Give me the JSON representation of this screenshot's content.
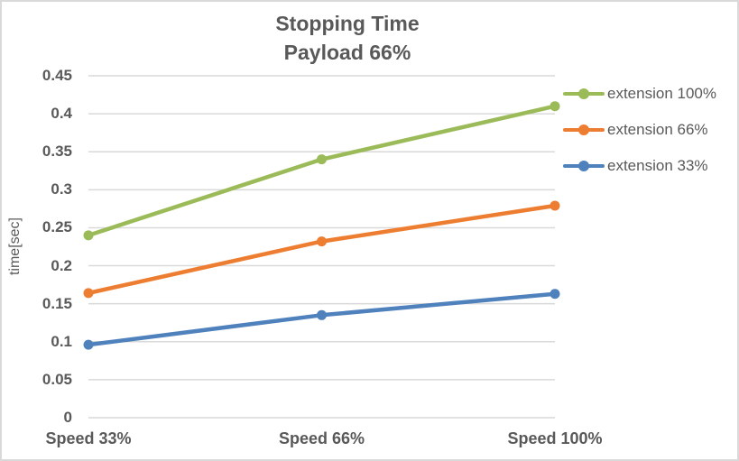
{
  "chart_data": {
    "type": "line",
    "title": "Stopping Time",
    "subtitle": "Payload 66%",
    "ylabel": "time[sec]",
    "xlabel": "",
    "categories": [
      "Speed 33%",
      "Speed 66%",
      "Speed 100%"
    ],
    "series": [
      {
        "name": "extension 100%",
        "color": "#9BBB59",
        "values": [
          0.24,
          0.34,
          0.41
        ]
      },
      {
        "name": "extension 66%",
        "color": "#ED7D31",
        "values": [
          0.164,
          0.232,
          0.279
        ]
      },
      {
        "name": "extension 33%",
        "color": "#4F81BD",
        "values": [
          0.096,
          0.135,
          0.163
        ]
      }
    ],
    "ylim": [
      0,
      0.45
    ],
    "ytick_step": 0.05,
    "ytick_labels": [
      "0",
      "0.05",
      "0.1",
      "0.15",
      "0.2",
      "0.25",
      "0.3",
      "0.35",
      "0.4",
      "0.45"
    ],
    "grid": "horizontal",
    "legend_position": "right",
    "marker": "circle"
  },
  "colors": {
    "text": "#595959",
    "grid": "#D9D9D9",
    "border": "#D9D9D9",
    "background": "#FFFFFF"
  }
}
